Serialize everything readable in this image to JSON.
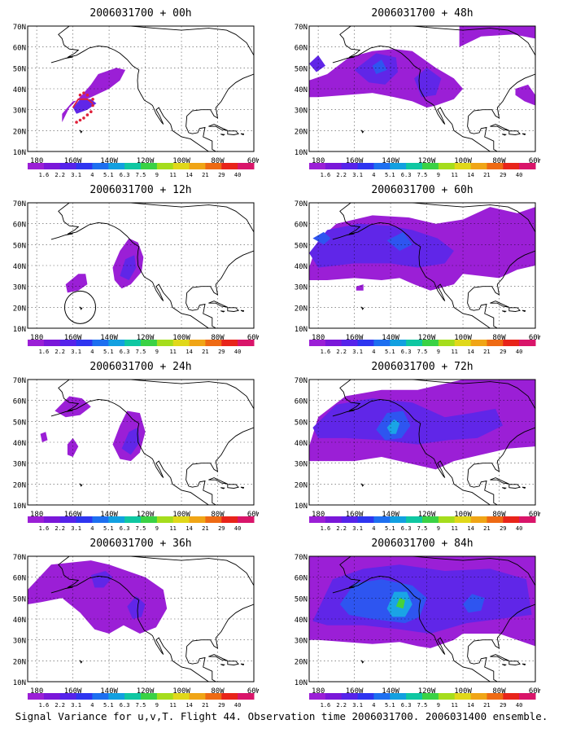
{
  "caption": "Signal Variance for u,v,T. Flight 44. Observation time 2006031700. 2006031400 ensemble.",
  "axes": {
    "lat_labels": [
      "70N",
      "60N",
      "50N",
      "40N",
      "30N",
      "20N",
      "10N"
    ],
    "lon_labels": [
      "180",
      "160W",
      "140W",
      "120W",
      "100W",
      "80W",
      "60W"
    ],
    "lat_range": [
      10,
      70
    ],
    "lon_range": [
      -185,
      -60
    ]
  },
  "colorbar": {
    "labels": [
      "1.6",
      "2.2",
      "3.1",
      "4",
      "5.1",
      "6.3",
      "7.5",
      "9",
      "11",
      "14",
      "21",
      "29",
      "40"
    ],
    "colors": [
      "#9b1fd6",
      "#7a17d9",
      "#5623ea",
      "#2e35f0",
      "#1d6ff0",
      "#12a0e0",
      "#0fc7a2",
      "#3ad245",
      "#a5dd1c",
      "#e0d81a",
      "#f0a516",
      "#ee6a14",
      "#e8241a",
      "#d9156a"
    ]
  },
  "panels": [
    {
      "id": "p00",
      "title": "2006031700 + 00h",
      "level": 1
    },
    {
      "id": "p48",
      "title": "2006031700 + 48h",
      "level": 2
    },
    {
      "id": "p12",
      "title": "2006031700 + 12h",
      "level": 1
    },
    {
      "id": "p60",
      "title": "2006031700 + 60h",
      "level": 3
    },
    {
      "id": "p24",
      "title": "2006031700 + 24h",
      "level": 1
    },
    {
      "id": "p72",
      "title": "2006031700 + 72h",
      "level": 4
    },
    {
      "id": "p36",
      "title": "2006031700 + 36h",
      "level": 2
    },
    {
      "id": "p84",
      "title": "2006031700 + 84h",
      "level": 5
    }
  ]
}
